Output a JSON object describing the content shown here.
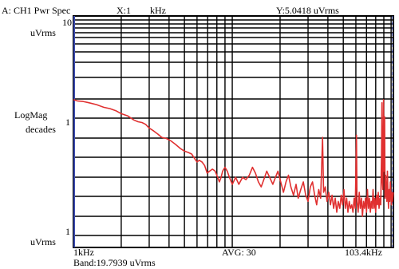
{
  "header": {
    "trace": "A: CH1 Pwr Spec",
    "x_readout_label": "X:1",
    "x_readout_unit": "kHz",
    "y_readout": "Y:5.0418  uVrms"
  },
  "y_axis": {
    "top_value": "10",
    "top_unit": "uVrms",
    "title_line1": "LogMag",
    "title_line2": "decades",
    "mid_value": "1",
    "bottom_value": "1",
    "bottom_unit": "uVrms"
  },
  "footer": {
    "x_start": "1kHz",
    "avg": "AVG:   30",
    "x_end": "103.4kHz",
    "band": "Band:19.7939 uVrms"
  },
  "colors": {
    "trace": "#e03030",
    "grid": "#000000",
    "frame": "#000000",
    "marker": "#3a4ab0"
  },
  "chart_data": {
    "type": "line",
    "x_scale": "log",
    "y_scale": "log",
    "x_unit": "kHz",
    "y_unit": "uVrms",
    "xlim": [
      1,
      103.4
    ],
    "ylim_decades_display": [
      10,
      1
    ],
    "grid": true,
    "series": [
      {
        "values": [
          [
            1.0,
            1.0
          ],
          [
            1.06,
            0.98
          ],
          [
            1.15,
            0.97
          ],
          [
            1.25,
            0.95
          ],
          [
            1.4,
            0.92
          ],
          [
            1.55,
            0.88
          ],
          [
            1.7,
            0.86
          ],
          [
            1.85,
            0.83
          ],
          [
            2.0,
            0.79
          ],
          [
            2.2,
            0.76
          ],
          [
            2.4,
            0.71
          ],
          [
            2.55,
            0.69
          ],
          [
            2.7,
            0.68
          ],
          [
            2.85,
            0.66
          ],
          [
            3.0,
            0.62
          ],
          [
            3.2,
            0.59
          ],
          [
            3.4,
            0.56
          ],
          [
            3.6,
            0.53
          ],
          [
            3.85,
            0.52
          ],
          [
            4.1,
            0.5
          ],
          [
            4.4,
            0.47
          ],
          [
            4.7,
            0.44
          ],
          [
            5.0,
            0.42
          ],
          [
            5.3,
            0.41
          ],
          [
            5.55,
            0.4
          ],
          [
            5.8,
            0.37
          ],
          [
            6.0,
            0.35
          ],
          [
            6.2,
            0.36
          ],
          [
            6.45,
            0.35
          ],
          [
            6.7,
            0.33
          ],
          [
            6.95,
            0.29
          ],
          [
            7.2,
            0.3
          ],
          [
            7.5,
            0.31
          ],
          [
            7.8,
            0.3
          ],
          [
            8.1,
            0.27
          ],
          [
            8.3,
            0.25
          ],
          [
            8.5,
            0.27
          ],
          [
            8.7,
            0.3
          ],
          [
            9.0,
            0.32
          ],
          [
            9.3,
            0.3
          ],
          [
            9.6,
            0.27
          ],
          [
            10.0,
            0.24
          ],
          [
            10.5,
            0.27
          ],
          [
            11.0,
            0.24
          ],
          [
            11.6,
            0.27
          ],
          [
            12.2,
            0.26
          ],
          [
            12.8,
            0.28
          ],
          [
            13.4,
            0.32
          ],
          [
            14.0,
            0.29
          ],
          [
            14.6,
            0.25
          ],
          [
            15.2,
            0.23
          ],
          [
            15.8,
            0.26
          ],
          [
            16.5,
            0.3
          ],
          [
            17.2,
            0.27
          ],
          [
            18.0,
            0.24
          ],
          [
            18.7,
            0.27
          ],
          [
            19.4,
            0.3
          ],
          [
            20.2,
            0.25
          ],
          [
            21.0,
            0.21
          ],
          [
            21.8,
            0.25
          ],
          [
            22.6,
            0.28
          ],
          [
            23.4,
            0.23
          ],
          [
            24.3,
            0.2
          ],
          [
            25.2,
            0.24
          ],
          [
            26.0,
            0.19
          ],
          [
            27.0,
            0.22
          ],
          [
            28.0,
            0.25
          ],
          [
            29.0,
            0.2
          ],
          [
            30.0,
            0.18
          ],
          [
            31.0,
            0.23
          ],
          [
            32.0,
            0.25
          ],
          [
            33.0,
            0.2
          ],
          [
            34.0,
            0.17
          ],
          [
            35.0,
            0.22
          ],
          [
            36.0,
            0.19
          ],
          [
            37.0,
            0.53
          ],
          [
            37.6,
            0.21
          ],
          [
            38.5,
            0.23
          ],
          [
            39.5,
            0.18
          ],
          [
            40.5,
            0.21
          ],
          [
            41.5,
            0.17
          ],
          [
            42.5,
            0.2
          ],
          [
            43.5,
            0.16
          ],
          [
            44.5,
            0.19
          ],
          [
            45.5,
            0.15
          ],
          [
            46.5,
            0.18
          ],
          [
            47.5,
            0.16
          ],
          [
            48.5,
            0.2
          ],
          [
            49.5,
            0.17
          ],
          [
            50.5,
            0.22
          ],
          [
            51.5,
            0.16
          ],
          [
            52.5,
            0.19
          ],
          [
            53.5,
            0.15
          ],
          [
            54.5,
            0.18
          ],
          [
            55.5,
            0.16
          ],
          [
            56.5,
            0.17
          ],
          [
            57.5,
            0.15
          ],
          [
            58.5,
            0.19
          ],
          [
            59.5,
            0.16
          ],
          [
            60.5,
            0.55
          ],
          [
            61.0,
            0.18
          ],
          [
            62.0,
            0.15
          ],
          [
            63.0,
            0.21
          ],
          [
            64.0,
            0.16
          ],
          [
            65.0,
            0.19
          ],
          [
            66.0,
            0.14
          ],
          [
            67.0,
            0.18
          ],
          [
            68.0,
            0.16
          ],
          [
            69.0,
            0.19
          ],
          [
            70.0,
            0.15
          ],
          [
            71.0,
            0.22
          ],
          [
            72.0,
            0.16
          ],
          [
            73.0,
            0.19
          ],
          [
            74.0,
            0.15
          ],
          [
            75.0,
            0.18
          ],
          [
            76.0,
            0.16
          ],
          [
            77.0,
            0.22
          ],
          [
            78.0,
            0.16
          ],
          [
            79.0,
            0.19
          ],
          [
            80.0,
            0.15
          ],
          [
            81.0,
            0.2
          ],
          [
            82.0,
            0.17
          ],
          [
            83.0,
            0.21
          ],
          [
            84.0,
            0.16
          ],
          [
            85.0,
            0.19
          ],
          [
            86.0,
            0.17
          ],
          [
            87.0,
            0.4
          ],
          [
            87.5,
            0.95
          ],
          [
            88.0,
            0.25
          ],
          [
            88.8,
            0.22
          ],
          [
            89.6,
            1.0
          ],
          [
            90.2,
            0.3
          ],
          [
            91.0,
            0.75
          ],
          [
            91.6,
            0.19
          ],
          [
            92.5,
            0.28
          ],
          [
            93.2,
            0.21
          ],
          [
            94.0,
            0.18
          ],
          [
            94.8,
            0.3
          ],
          [
            95.6,
            0.2
          ],
          [
            96.4,
            0.16
          ],
          [
            97.2,
            0.22
          ],
          [
            98.0,
            0.18
          ],
          [
            98.8,
            0.25
          ],
          [
            99.6,
            0.2
          ],
          [
            100.4,
            0.17
          ],
          [
            101.2,
            0.21
          ],
          [
            102.0,
            0.18
          ],
          [
            103.4,
            0.21
          ]
        ]
      }
    ]
  }
}
